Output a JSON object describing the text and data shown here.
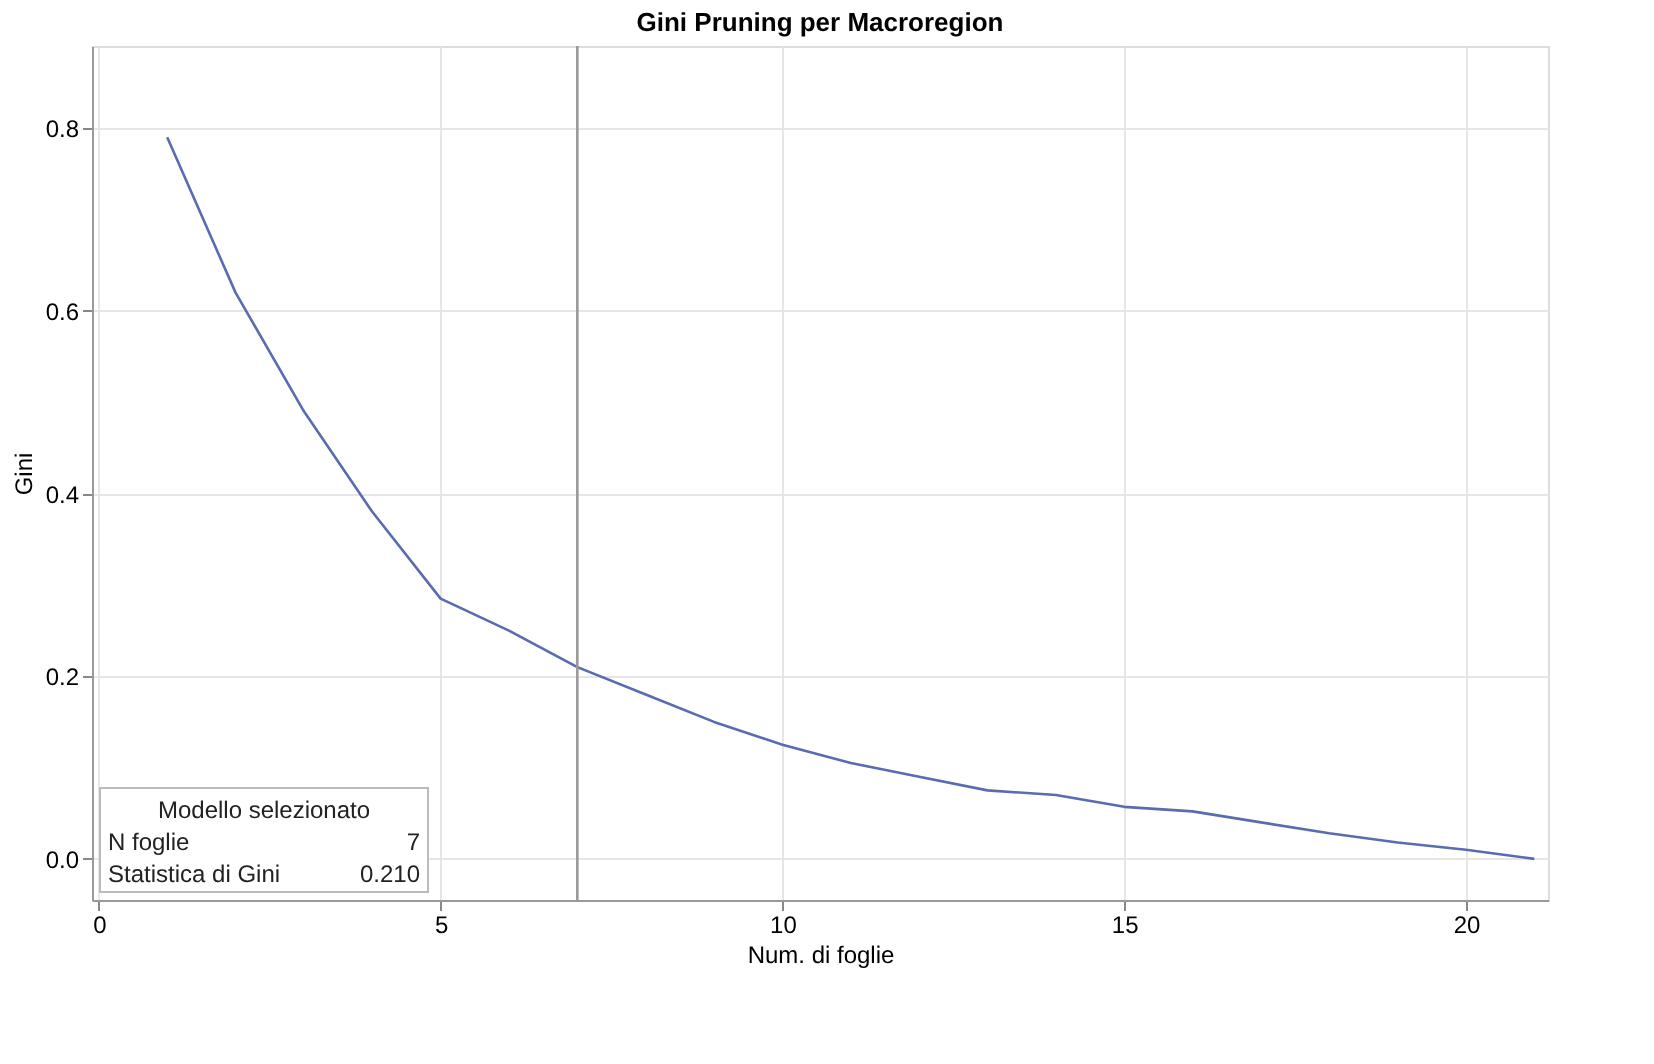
{
  "chart_data": {
    "type": "line",
    "title": "Gini Pruning per Macroregion",
    "xlabel": "Num. di foglie",
    "ylabel": "Gini",
    "x": [
      1,
      2,
      3,
      4,
      5,
      6,
      7,
      8,
      9,
      10,
      11,
      12,
      13,
      14,
      15,
      16,
      17,
      18,
      19,
      20,
      21
    ],
    "series": [
      {
        "color": "#5a6bb0",
        "values": [
          0.79,
          0.62,
          0.49,
          0.38,
          0.285,
          0.25,
          0.21,
          0.18,
          0.15,
          0.125,
          0.105,
          0.09,
          0.075,
          0.07,
          0.057,
          0.052,
          0.04,
          0.028,
          0.018,
          0.01,
          0.0
        ]
      }
    ],
    "xlim": [
      -0.1,
      21.2
    ],
    "xticks": [
      0,
      5,
      10,
      15,
      20
    ],
    "ylim": [
      -0.045,
      0.89
    ],
    "yticks": [
      {
        "value": 0,
        "label": "0.0"
      },
      0.2,
      0.4,
      0.6,
      0.8
    ],
    "grid": true,
    "marker": "none",
    "line_style": "solid",
    "ref_lines": [
      {
        "axis": "x",
        "value": 7,
        "color": "#999999"
      }
    ],
    "annotations": [
      "Modello selezionato",
      "N foglie",
      "7",
      "Statistica di Gini",
      "0.210"
    ]
  }
}
